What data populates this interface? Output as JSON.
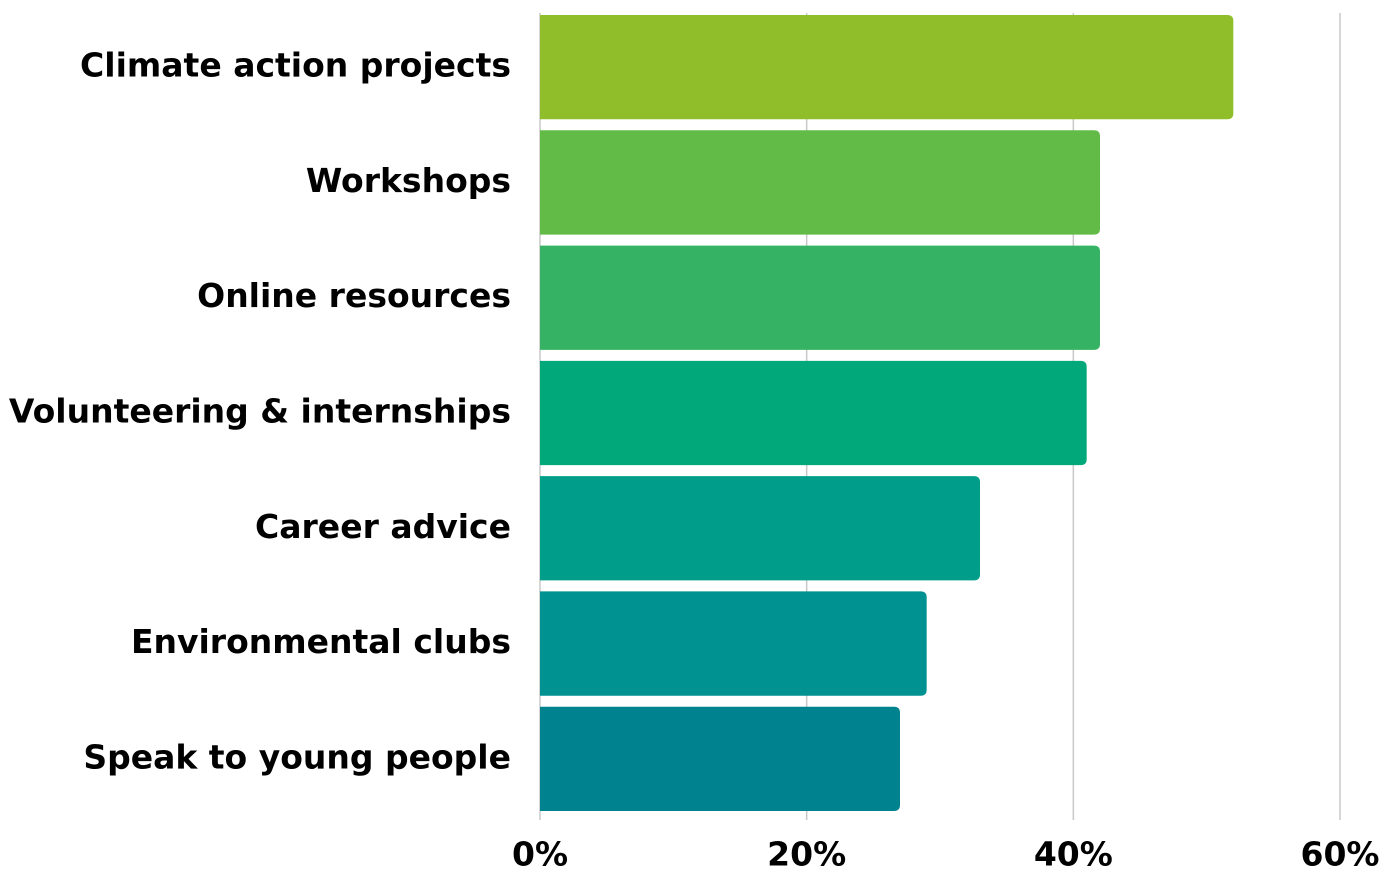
{
  "chart_data": {
    "type": "barh",
    "categories": [
      "Climate action projects",
      "Workshops",
      "Online resources",
      "Volunteering & internships",
      "Career advice",
      "Environmental clubs",
      "Speak to young people"
    ],
    "values": [
      52,
      42,
      42,
      41,
      33,
      29,
      27
    ],
    "colors": [
      "#8fbe2a",
      "#62bb46",
      "#36b264",
      "#00a87a",
      "#009e8a",
      "#009191",
      "#00838f"
    ],
    "xlim": [
      0,
      60
    ],
    "xticks": [
      {
        "value": 0,
        "label": "0%"
      },
      {
        "value": 20,
        "label": "20%"
      },
      {
        "value": 40,
        "label": "40%"
      },
      {
        "value": 60,
        "label": "60%"
      }
    ],
    "grid": true
  }
}
